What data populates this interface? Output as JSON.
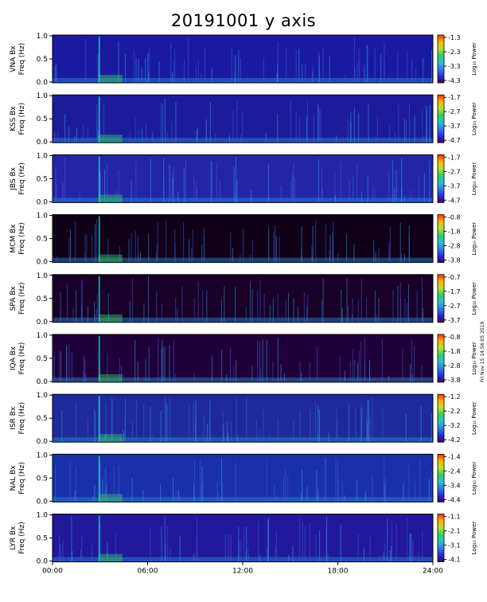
{
  "title": "20191001 y axis",
  "side_note": "Fri Nov 15 14:56:05 2019",
  "colorbar_label": "Log₁₀ Power",
  "colormap": [
    "#3a0066",
    "#2b2bd6",
    "#2f7fe8",
    "#22c7cc",
    "#33d05a",
    "#b8e02a",
    "#ffb400",
    "#ff3000"
  ],
  "chart_data": {
    "type": "heatmap",
    "title": "20191001 y axis",
    "x_tick_labels": [
      "00:00",
      "06:00",
      "12:00",
      "18:00",
      "24:00"
    ],
    "x_range_hours": [
      0,
      24
    ],
    "ylabel": "Freq (Hz)",
    "ylim": [
      0,
      1.0
    ],
    "y_tick_labels": [
      "0.0",
      "0.5",
      "1.0"
    ],
    "panels": [
      {
        "station": "VNA Bx",
        "colorbar_ticks": [
          "-1.3",
          "-2.3",
          "-3.3",
          "-4.3"
        ],
        "background": "#1a1aa0"
      },
      {
        "station": "KSS Bx",
        "colorbar_ticks": [
          "-1.7",
          "-2.7",
          "-3.7",
          "-4.7"
        ],
        "background": "#1c1c9a"
      },
      {
        "station": "JBS Bx",
        "colorbar_ticks": [
          "-1.7",
          "-2.7",
          "-3.7",
          "-4.7"
        ],
        "background": "#2424a8"
      },
      {
        "station": "MCM Bx",
        "colorbar_ticks": [
          "-0.8",
          "-1.8",
          "-2.8",
          "-3.8"
        ],
        "background": "#100018"
      },
      {
        "station": "SPA Bx",
        "colorbar_ticks": [
          "-0.7",
          "-1.7",
          "-2.7",
          "-3.7"
        ],
        "background": "#180028"
      },
      {
        "station": "IQA Bx",
        "colorbar_ticks": [
          "-0.8",
          "-1.8",
          "-2.8",
          "-3.8"
        ],
        "background": "#200038"
      },
      {
        "station": "ISR Bx",
        "colorbar_ticks": [
          "-1.2",
          "-2.2",
          "-3.2",
          "-4.2"
        ],
        "background": "#1e2a9a"
      },
      {
        "station": "NAL Bx",
        "colorbar_ticks": [
          "-1.4",
          "-2.4",
          "-3.4",
          "-4.4"
        ],
        "background": "#1a30a8"
      },
      {
        "station": "LYR Bx",
        "colorbar_ticks": [
          "-1.1",
          "-2.1",
          "-3.1",
          "-4.1"
        ],
        "background": "#22189a"
      }
    ]
  }
}
